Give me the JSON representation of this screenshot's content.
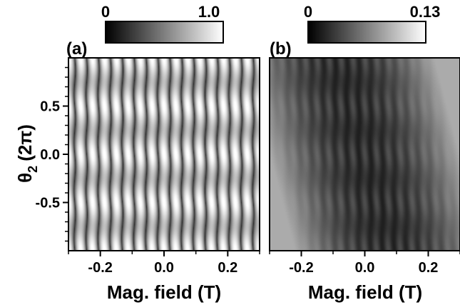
{
  "chart_data": [
    {
      "type": "heatmap",
      "panel_label": "(a)",
      "colorbar": {
        "min_label": "0",
        "max_label": "1.0",
        "range": [
          0,
          1.0
        ],
        "colors": [
          "#000000",
          "#ffffff"
        ]
      },
      "xlabel": "Mag. field (T)",
      "ylabel": "θ",
      "ylabel_subscript": "2",
      "ylabel_unit": "(2π)",
      "xlim": [
        -0.3,
        0.3
      ],
      "ylim": [
        -1.0,
        1.0
      ],
      "xticks": [
        "-0.2",
        "0.0",
        "0.2"
      ],
      "yticks": [
        "0.5",
        "0.0",
        "-0.5"
      ],
      "ytick_values": [
        0.5,
        0.0,
        -0.5
      ],
      "xtick_values": [
        -0.2,
        0.0,
        0.2
      ],
      "pattern": {
        "description_of_values": "periodic high-contrast interference fringes",
        "field_period_T": 0.0375,
        "theta_period_2pi": 0.5,
        "value_range": [
          0,
          1.0
        ]
      }
    },
    {
      "type": "heatmap",
      "panel_label": "(b)",
      "colorbar": {
        "min_label": "0",
        "max_label": "0.13",
        "range": [
          0,
          0.13
        ],
        "colors": [
          "#000000",
          "#ffffff"
        ]
      },
      "xlabel": "Mag. field (T)",
      "xlim": [
        -0.3,
        0.3
      ],
      "ylim": [
        -1.0,
        1.0
      ],
      "xticks": [
        "-0.2",
        "0.0",
        "0.2"
      ],
      "xtick_values": [
        -0.2,
        0.0,
        0.2
      ],
      "pattern": {
        "description_of_values": "dark central region with fringes, bright edges at large |B|",
        "field_period_T": 0.0375,
        "theta_period_2pi": 0.5,
        "value_range": [
          0,
          0.13
        ]
      }
    }
  ]
}
